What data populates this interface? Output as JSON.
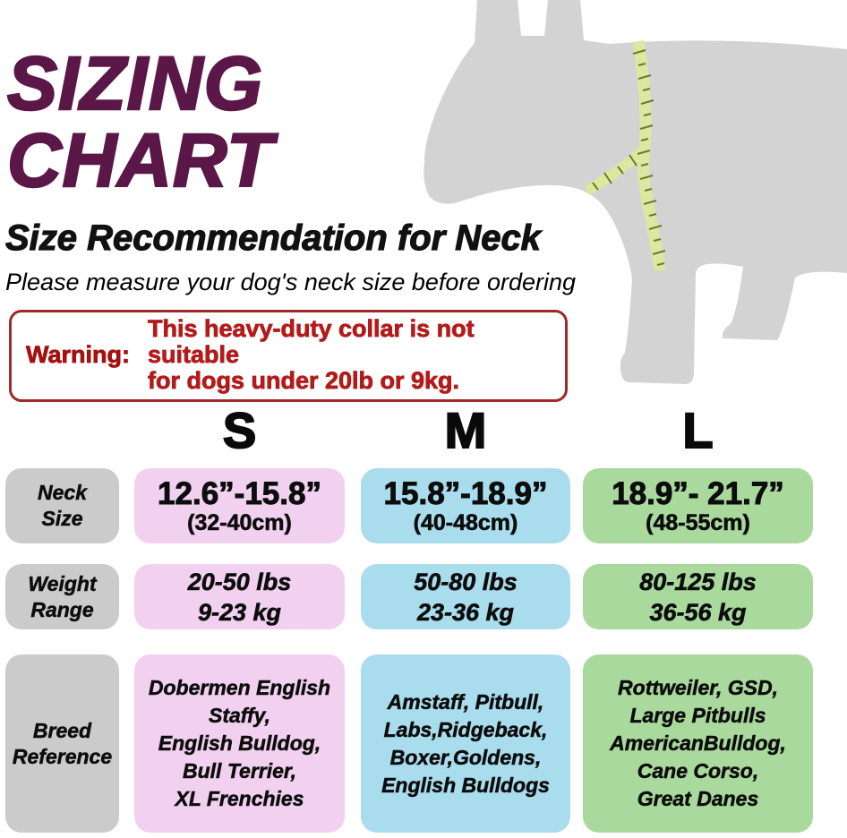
{
  "page": {
    "title_line1": "SIZING",
    "title_line2": "CHART",
    "subtitle": "Size Recommendation for Neck",
    "note": "Please measure your dog's neck size before ordering"
  },
  "warning": {
    "label": "Warning:",
    "lines": [
      "This heavy-duty collar is not suitable",
      "for dogs under 20lb or 9kg."
    ]
  },
  "illustration": {
    "description": "gray dog silhouette with yellow-green measuring tape around neck",
    "dog_color": "#D3D3D3",
    "tape_color": "#DCE79F",
    "tick_color": "#5F6F1F"
  },
  "colors": {
    "title": "#5B1747",
    "warning_border": "#9B2A2A",
    "warning_label": "#A31111",
    "warning_text": "#B31B1B",
    "row_label_bg": "#CBCBCB",
    "size_s_bg": "#F1D1EF",
    "size_m_bg": "#A9DCEC",
    "size_l_bg": "#A9D99D"
  },
  "table": {
    "headers": {
      "s": "S",
      "m": "M",
      "l": "L"
    },
    "row_labels": {
      "neck": "Neck Size",
      "weight": "Weight Range",
      "breed": "Breed Reference"
    },
    "neck": {
      "s": {
        "inches": "12.6”-15.8”",
        "cm": "(32-40cm)"
      },
      "m": {
        "inches": "15.8”-18.9”",
        "cm": "(40-48cm)"
      },
      "l": {
        "inches": "18.9”- 21.7”",
        "cm": "(48-55cm)"
      }
    },
    "weight": {
      "s": {
        "lbs": "20-50 lbs",
        "kg": "9-23 kg"
      },
      "m": {
        "lbs": "50-80 lbs",
        "kg": "23-36 kg"
      },
      "l": {
        "lbs": "80-125 lbs",
        "kg": "36-56 kg"
      }
    },
    "breed": {
      "s": [
        "Dobermen English",
        "Staffy,",
        "English Bulldog,",
        "Bull Terrier,",
        "XL Frenchies"
      ],
      "m": [
        "Amstaff, Pitbull,",
        "Labs,Ridgeback,",
        "Boxer,Goldens,",
        "English Bulldogs"
      ],
      "l": [
        "Rottweiler, GSD,",
        "Large Pitbulls",
        "AmericanBulldog,",
        "Cane Corso,",
        "Great Danes"
      ]
    }
  }
}
